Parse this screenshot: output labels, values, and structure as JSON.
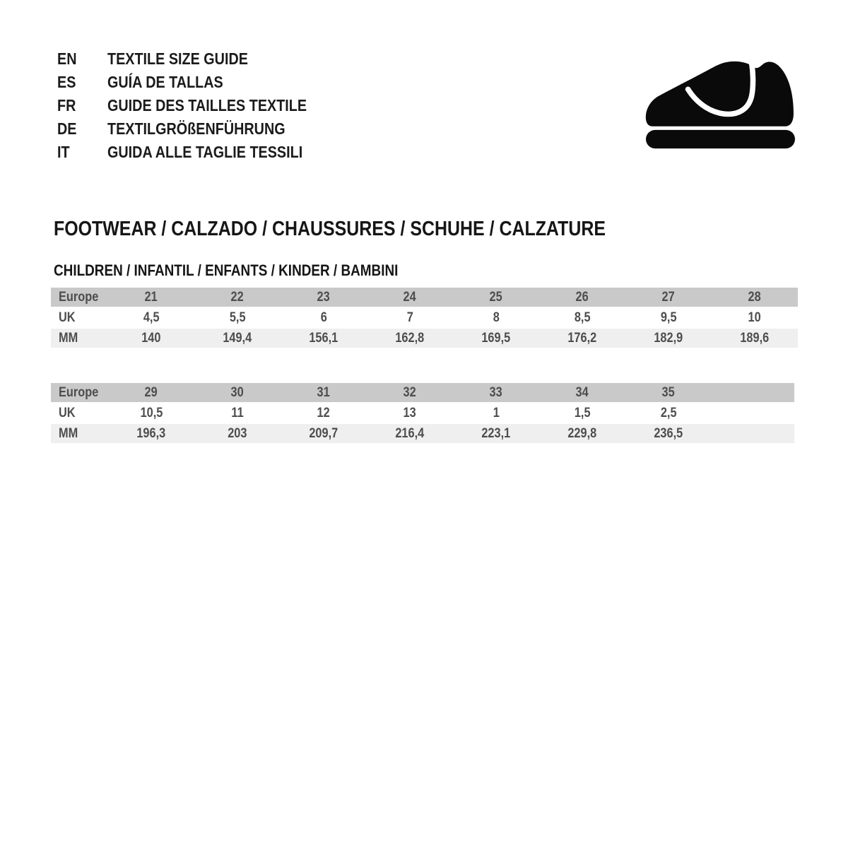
{
  "colors": {
    "page_bg": "#ffffff",
    "logo": "#0a0a0a",
    "heading_text": "#161616",
    "table_text": "#4d4d4d",
    "table_header_row_bg": "#c9c9c9",
    "table_mm_row_bg": "#efefef",
    "table_uk_row_bg": "#ffffff"
  },
  "language_guide": {
    "items": [
      {
        "code": "EN",
        "label": "TEXTILE SIZE GUIDE"
      },
      {
        "code": "ES",
        "label": "GUÍA DE TALLAS"
      },
      {
        "code": "FR",
        "label": "GUIDE DES TAILLES TEXTILE"
      },
      {
        "code": "DE",
        "label": "TEXTILGRÖßENFÜHRUNG"
      },
      {
        "code": "IT",
        "label": "GUIDA ALLE TAGLIE TESSILI"
      }
    ]
  },
  "logo": {
    "icon": "baby-shoe-icon",
    "color": "#0a0a0a"
  },
  "section": {
    "title": "FOOTWEAR / CALZADO / CHAUSSURES / SCHUHE / CALZATURE",
    "subtitle": "CHILDREN / INFANTIL / ENFANTS / KINDER / BAMBINI"
  },
  "tables": [
    {
      "type": "table",
      "header_label": "Europe",
      "uk_label": "UK",
      "mm_label": "MM",
      "columns": [
        "21",
        "22",
        "23",
        "24",
        "25",
        "26",
        "27",
        "28"
      ],
      "uk": [
        "4,5",
        "5,5",
        "6",
        "7",
        "8",
        "8,5",
        "9,5",
        "10"
      ],
      "mm": [
        "140",
        "149,4",
        "156,1",
        "162,8",
        "169,5",
        "176,2",
        "182,9",
        "189,6"
      ]
    },
    {
      "type": "table",
      "header_label": "Europe",
      "uk_label": "UK",
      "mm_label": "MM",
      "columns": [
        "29",
        "30",
        "31",
        "32",
        "33",
        "34",
        "35"
      ],
      "uk": [
        "10,5",
        "11",
        "12",
        "13",
        "1",
        "1,5",
        "2,5"
      ],
      "mm": [
        "196,3",
        "203",
        "209,7",
        "216,4",
        "223,1",
        "229,8",
        "236,5"
      ]
    }
  ]
}
